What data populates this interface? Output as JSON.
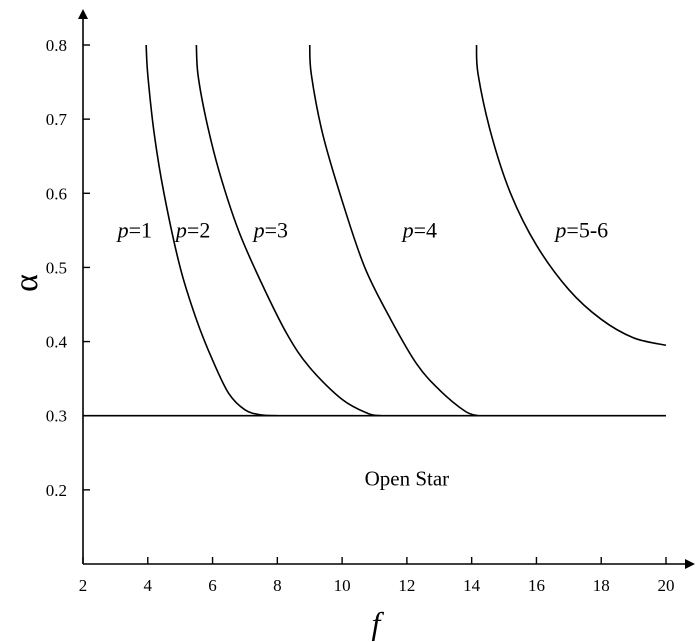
{
  "chart_data": {
    "type": "line",
    "title": "",
    "xlabel": "f",
    "ylabel": "α",
    "xlim": [
      2,
      20
    ],
    "ylim": [
      0.1,
      0.8
    ],
    "x_ticks": [
      2,
      4,
      6,
      8,
      10,
      12,
      14,
      16,
      18,
      20
    ],
    "y_ticks": [
      0.2,
      0.3,
      0.4,
      0.5,
      0.6,
      0.7,
      0.8
    ],
    "x_tick_labels": [
      "2",
      "4",
      "6",
      "8",
      "10",
      "12",
      "14",
      "16",
      "18",
      "20"
    ],
    "y_tick_labels": [
      "0.2",
      "0.3",
      "0.4",
      "0.5",
      "0.6",
      "0.7",
      "0.8"
    ],
    "grid": false,
    "series": [
      {
        "x": [
          3.95,
          4.0,
          4.2,
          4.5,
          5.0,
          5.5,
          6.0,
          6.5,
          7.0,
          7.5,
          8.0
        ],
        "y": [
          0.8,
          0.76,
          0.68,
          0.6,
          0.5,
          0.43,
          0.375,
          0.33,
          0.308,
          0.301,
          0.3
        ]
      },
      {
        "x": [
          5.5,
          5.55,
          5.8,
          6.2,
          6.8,
          7.5,
          8.3,
          9.0,
          10.0,
          10.8,
          11.2
        ],
        "y": [
          0.8,
          0.76,
          0.7,
          0.63,
          0.55,
          0.48,
          0.41,
          0.365,
          0.322,
          0.303,
          0.3
        ]
      },
      {
        "x": [
          9.0,
          9.05,
          9.4,
          10.0,
          10.7,
          11.5,
          12.3,
          13.0,
          13.8,
          14.2
        ],
        "y": [
          0.8,
          0.76,
          0.68,
          0.59,
          0.5,
          0.43,
          0.37,
          0.335,
          0.306,
          0.3
        ]
      },
      {
        "x": [
          14.15,
          14.2,
          14.6,
          15.2,
          16.0,
          17.0,
          18.0,
          19.0,
          20.0
        ],
        "y": [
          0.8,
          0.76,
          0.68,
          0.6,
          0.53,
          0.47,
          0.43,
          0.405,
          0.395
        ]
      },
      {
        "x": [
          2.0,
          20.0
        ],
        "y": [
          0.3,
          0.3
        ]
      }
    ],
    "region_labels": [
      {
        "text": "p=1",
        "x": 3.6,
        "y": 0.55
      },
      {
        "text": "p=2",
        "x": 5.4,
        "y": 0.55
      },
      {
        "text": "p=3",
        "x": 7.8,
        "y": 0.55
      },
      {
        "text": "p=4",
        "x": 12.4,
        "y": 0.55
      },
      {
        "text": "p=5-6",
        "x": 17.4,
        "y": 0.55
      }
    ],
    "annotations": [
      {
        "text": "Open Star",
        "x": 12.0,
        "y": 0.215
      }
    ]
  }
}
